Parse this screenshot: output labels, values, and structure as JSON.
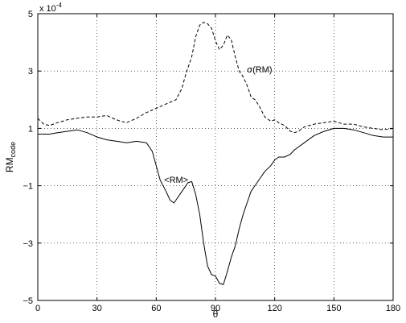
{
  "chart_data": {
    "type": "line",
    "title": "",
    "xlabel": "θ",
    "ylabel_main": "RM",
    "ylabel_sub": "code",
    "exponent_label": "x 10",
    "exponent_power": "-4",
    "xlim": [
      0,
      180
    ],
    "ylim": [
      -5,
      5
    ],
    "xticks": [
      0,
      30,
      60,
      90,
      120,
      150,
      180
    ],
    "yticks": [
      -5,
      -3,
      -1,
      1,
      3,
      5
    ],
    "xtick_labels": [
      "0",
      "30",
      "60",
      "90",
      "120",
      "150",
      "180"
    ],
    "ytick_labels": [
      "−5",
      "−3",
      "−1",
      "1",
      "3",
      "5"
    ],
    "grid": true,
    "series": [
      {
        "name": "σ(RM)",
        "line_style": "dashed",
        "color": "#000000",
        "x": [
          0,
          3,
          6,
          10,
          15,
          20,
          25,
          30,
          35,
          38,
          42,
          45,
          50,
          55,
          60,
          65,
          70,
          73,
          75,
          78,
          80,
          82,
          84,
          86,
          88,
          90,
          92,
          94,
          96,
          98,
          100,
          102,
          104,
          106,
          108,
          110,
          112,
          115,
          118,
          120,
          122,
          125,
          128,
          130,
          132,
          135,
          140,
          145,
          150,
          155,
          160,
          165,
          170,
          175,
          180
        ],
        "y": [
          1.35,
          1.15,
          1.1,
          1.2,
          1.3,
          1.35,
          1.4,
          1.4,
          1.45,
          1.35,
          1.25,
          1.2,
          1.35,
          1.55,
          1.7,
          1.85,
          2.0,
          2.4,
          2.9,
          3.5,
          4.2,
          4.6,
          4.7,
          4.65,
          4.5,
          4.05,
          3.75,
          3.9,
          4.25,
          4.1,
          3.5,
          3.0,
          2.8,
          2.5,
          2.1,
          2.0,
          1.8,
          1.4,
          1.25,
          1.3,
          1.2,
          1.1,
          0.9,
          0.85,
          0.9,
          1.05,
          1.15,
          1.2,
          1.25,
          1.15,
          1.15,
          1.05,
          1.0,
          0.95,
          1.0
        ]
      },
      {
        "name": "<RM>",
        "line_style": "solid",
        "color": "#000000",
        "x": [
          0,
          3,
          6,
          10,
          15,
          20,
          25,
          30,
          35,
          40,
          45,
          50,
          55,
          58,
          60,
          62,
          65,
          67,
          69,
          70,
          72,
          74,
          76,
          78,
          80,
          82,
          84,
          86,
          88,
          90,
          92,
          94,
          96,
          98,
          100,
          102,
          104,
          106,
          108,
          110,
          112,
          115,
          118,
          120,
          122,
          125,
          128,
          130,
          135,
          140,
          145,
          150,
          155,
          160,
          165,
          170,
          175,
          180
        ],
        "y": [
          0.8,
          0.8,
          0.8,
          0.85,
          0.9,
          0.95,
          0.85,
          0.7,
          0.6,
          0.55,
          0.5,
          0.55,
          0.5,
          0.2,
          -0.3,
          -0.8,
          -1.2,
          -1.5,
          -1.6,
          -1.5,
          -1.3,
          -1.1,
          -0.9,
          -0.85,
          -1.3,
          -2.0,
          -3.0,
          -3.8,
          -4.1,
          -4.15,
          -4.4,
          -4.45,
          -4.0,
          -3.5,
          -3.1,
          -2.5,
          -2.0,
          -1.6,
          -1.2,
          -1.0,
          -0.8,
          -0.5,
          -0.3,
          -0.1,
          0.0,
          0.0,
          0.1,
          0.25,
          0.5,
          0.75,
          0.9,
          1.0,
          1.0,
          0.95,
          0.85,
          0.75,
          0.7,
          0.7
        ]
      }
    ],
    "annotations": [
      {
        "text": "σ(RM)",
        "x": 106,
        "y": 2.95
      },
      {
        "text": "<RM>",
        "x": 64,
        "y": -0.9
      }
    ]
  }
}
